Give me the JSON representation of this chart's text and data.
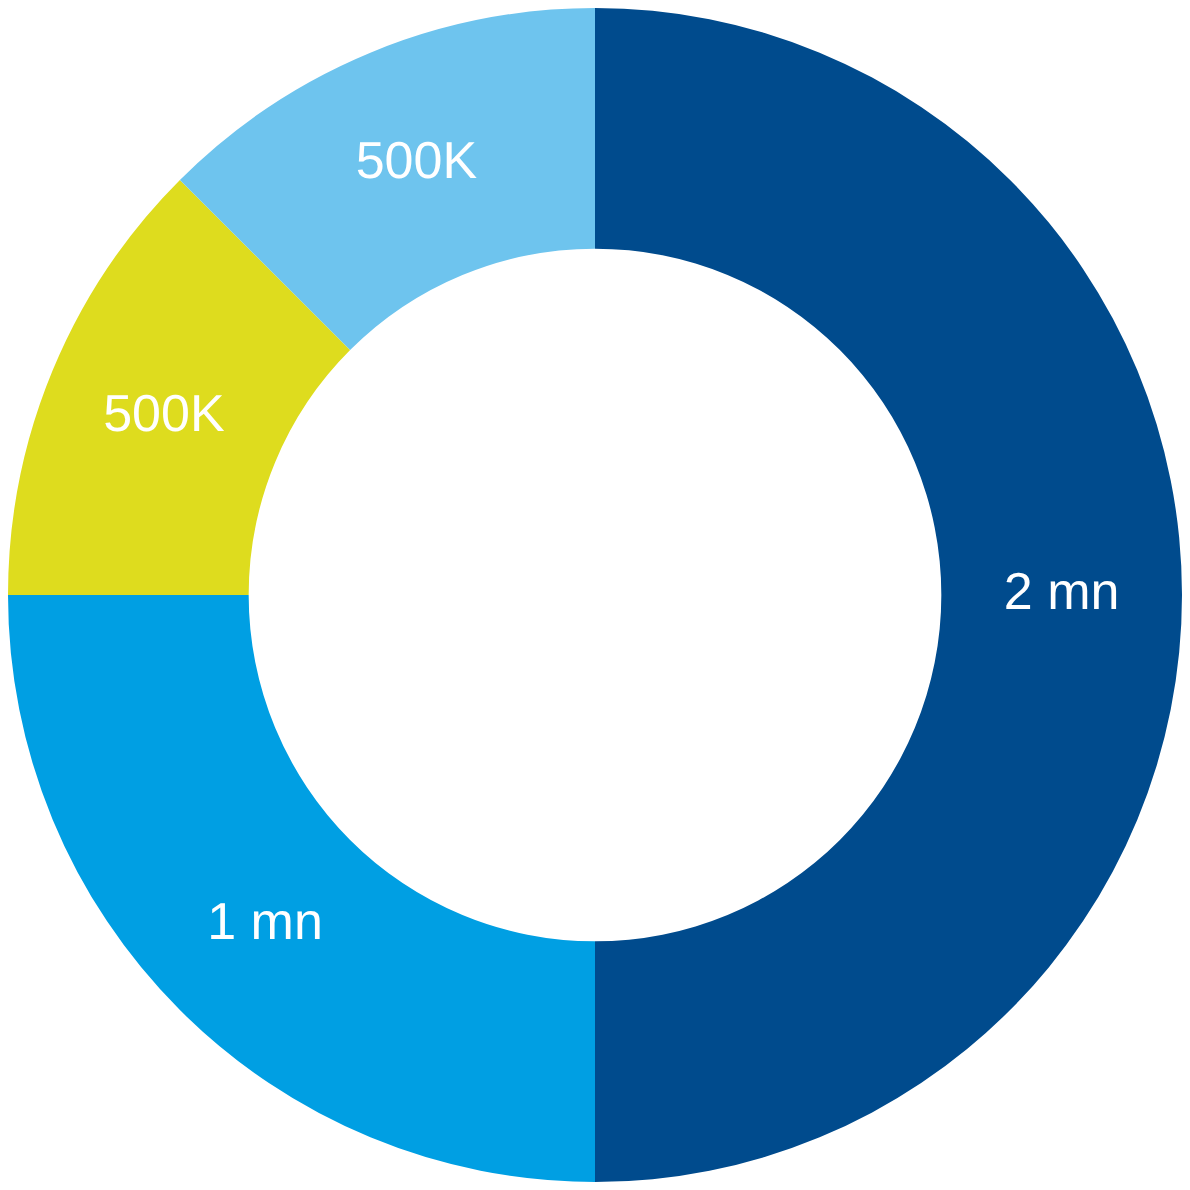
{
  "chart_data": {
    "type": "donut",
    "categories": [
      null,
      null,
      null,
      null
    ],
    "values": [
      2000000,
      1000000,
      500000,
      500000
    ],
    "colors": [
      "#004b8d",
      "#009fe3",
      "#dedc1e",
      "#6ec4ee"
    ],
    "value_labels": [
      "2 mn",
      "1 mn",
      "500K",
      "500K"
    ],
    "legend": false
  }
}
